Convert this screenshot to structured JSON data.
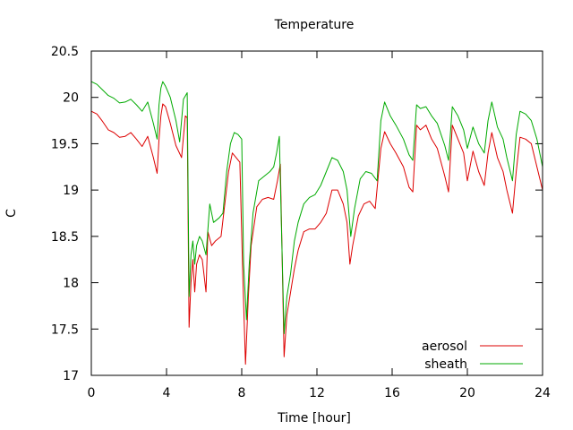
{
  "chart_data": {
    "type": "line",
    "title": "Temperature",
    "xlabel": "Time [hour]",
    "ylabel": "C",
    "xlim": [
      0,
      24
    ],
    "ylim": [
      17,
      20.5
    ],
    "xticks": [
      0,
      4,
      8,
      12,
      16,
      20,
      24
    ],
    "yticks": [
      17,
      17.5,
      18,
      18.5,
      19,
      19.5,
      20,
      20.5
    ],
    "xtick_labels": [
      "0",
      "4",
      "8",
      "12",
      "16",
      "20",
      "24"
    ],
    "ytick_labels": [
      "17",
      "17.5",
      "18",
      "18.5",
      "19",
      "19.5",
      "20",
      "20.5"
    ],
    "grid": false,
    "legend_position": "bottom-right",
    "series": [
      {
        "name": "aerosol",
        "color": "#dd0000",
        "points": [
          [
            0.0,
            19.85
          ],
          [
            0.3,
            19.82
          ],
          [
            0.6,
            19.74
          ],
          [
            0.9,
            19.65
          ],
          [
            1.2,
            19.62
          ],
          [
            1.5,
            19.57
          ],
          [
            1.8,
            19.58
          ],
          [
            2.1,
            19.62
          ],
          [
            2.4,
            19.55
          ],
          [
            2.7,
            19.47
          ],
          [
            3.0,
            19.58
          ],
          [
            3.3,
            19.35
          ],
          [
            3.5,
            19.18
          ],
          [
            3.6,
            19.55
          ],
          [
            3.7,
            19.8
          ],
          [
            3.8,
            19.93
          ],
          [
            3.95,
            19.9
          ],
          [
            4.2,
            19.72
          ],
          [
            4.5,
            19.48
          ],
          [
            4.8,
            19.35
          ],
          [
            5.0,
            19.8
          ],
          [
            5.1,
            19.78
          ],
          [
            5.2,
            17.52
          ],
          [
            5.3,
            18.0
          ],
          [
            5.4,
            18.25
          ],
          [
            5.5,
            17.9
          ],
          [
            5.6,
            18.2
          ],
          [
            5.75,
            18.3
          ],
          [
            5.9,
            18.25
          ],
          [
            6.1,
            17.9
          ],
          [
            6.2,
            18.55
          ],
          [
            6.4,
            18.4
          ],
          [
            6.6,
            18.45
          ],
          [
            6.9,
            18.5
          ],
          [
            7.1,
            18.85
          ],
          [
            7.3,
            19.2
          ],
          [
            7.5,
            19.4
          ],
          [
            7.7,
            19.35
          ],
          [
            7.9,
            19.3
          ],
          [
            8.05,
            18.1
          ],
          [
            8.2,
            17.12
          ],
          [
            8.35,
            17.85
          ],
          [
            8.5,
            18.4
          ],
          [
            8.8,
            18.82
          ],
          [
            9.1,
            18.9
          ],
          [
            9.4,
            18.92
          ],
          [
            9.7,
            18.9
          ],
          [
            9.9,
            19.1
          ],
          [
            10.05,
            19.28
          ],
          [
            10.15,
            18.3
          ],
          [
            10.25,
            17.2
          ],
          [
            10.4,
            17.65
          ],
          [
            10.6,
            17.9
          ],
          [
            10.8,
            18.15
          ],
          [
            11.0,
            18.35
          ],
          [
            11.3,
            18.55
          ],
          [
            11.6,
            18.58
          ],
          [
            11.9,
            18.58
          ],
          [
            12.2,
            18.65
          ],
          [
            12.5,
            18.75
          ],
          [
            12.8,
            19.0
          ],
          [
            13.1,
            19.0
          ],
          [
            13.4,
            18.85
          ],
          [
            13.6,
            18.65
          ],
          [
            13.75,
            18.2
          ],
          [
            13.9,
            18.4
          ],
          [
            14.2,
            18.72
          ],
          [
            14.5,
            18.85
          ],
          [
            14.8,
            18.88
          ],
          [
            15.1,
            18.8
          ],
          [
            15.4,
            19.45
          ],
          [
            15.6,
            19.63
          ],
          [
            15.9,
            19.5
          ],
          [
            16.2,
            19.4
          ],
          [
            16.6,
            19.25
          ],
          [
            16.9,
            19.03
          ],
          [
            17.1,
            18.98
          ],
          [
            17.3,
            19.7
          ],
          [
            17.5,
            19.65
          ],
          [
            17.8,
            19.7
          ],
          [
            18.1,
            19.55
          ],
          [
            18.4,
            19.45
          ],
          [
            18.8,
            19.15
          ],
          [
            19.0,
            18.98
          ],
          [
            19.2,
            19.7
          ],
          [
            19.5,
            19.55
          ],
          [
            19.8,
            19.4
          ],
          [
            20.0,
            19.1
          ],
          [
            20.3,
            19.42
          ],
          [
            20.6,
            19.2
          ],
          [
            20.9,
            19.05
          ],
          [
            21.1,
            19.4
          ],
          [
            21.3,
            19.62
          ],
          [
            21.6,
            19.35
          ],
          [
            21.9,
            19.2
          ],
          [
            22.1,
            19.0
          ],
          [
            22.4,
            18.75
          ],
          [
            22.6,
            19.2
          ],
          [
            22.8,
            19.57
          ],
          [
            23.1,
            19.55
          ],
          [
            23.4,
            19.5
          ],
          [
            23.7,
            19.25
          ],
          [
            24.0,
            19.0
          ]
        ]
      },
      {
        "name": "sheath",
        "color": "#00aa00",
        "points": [
          [
            0.0,
            20.17
          ],
          [
            0.3,
            20.14
          ],
          [
            0.6,
            20.08
          ],
          [
            0.9,
            20.02
          ],
          [
            1.2,
            19.99
          ],
          [
            1.5,
            19.94
          ],
          [
            1.8,
            19.95
          ],
          [
            2.1,
            19.98
          ],
          [
            2.4,
            19.92
          ],
          [
            2.7,
            19.85
          ],
          [
            3.0,
            19.95
          ],
          [
            3.3,
            19.72
          ],
          [
            3.5,
            19.55
          ],
          [
            3.6,
            19.92
          ],
          [
            3.7,
            20.1
          ],
          [
            3.8,
            20.17
          ],
          [
            3.95,
            20.12
          ],
          [
            4.2,
            20.0
          ],
          [
            4.5,
            19.75
          ],
          [
            4.7,
            19.52
          ],
          [
            4.9,
            19.98
          ],
          [
            5.1,
            20.05
          ],
          [
            5.2,
            17.85
          ],
          [
            5.3,
            18.3
          ],
          [
            5.4,
            18.45
          ],
          [
            5.5,
            18.2
          ],
          [
            5.6,
            18.4
          ],
          [
            5.75,
            18.5
          ],
          [
            5.9,
            18.45
          ],
          [
            6.1,
            18.3
          ],
          [
            6.3,
            18.85
          ],
          [
            6.5,
            18.65
          ],
          [
            6.8,
            18.7
          ],
          [
            7.0,
            18.75
          ],
          [
            7.2,
            19.2
          ],
          [
            7.4,
            19.5
          ],
          [
            7.6,
            19.62
          ],
          [
            7.8,
            19.6
          ],
          [
            8.0,
            19.55
          ],
          [
            8.1,
            18.2
          ],
          [
            8.25,
            17.6
          ],
          [
            8.4,
            18.2
          ],
          [
            8.6,
            18.75
          ],
          [
            8.9,
            19.1
          ],
          [
            9.2,
            19.15
          ],
          [
            9.5,
            19.2
          ],
          [
            9.7,
            19.25
          ],
          [
            9.85,
            19.4
          ],
          [
            10.0,
            19.58
          ],
          [
            10.1,
            18.7
          ],
          [
            10.25,
            17.45
          ],
          [
            10.4,
            17.85
          ],
          [
            10.6,
            18.1
          ],
          [
            10.8,
            18.45
          ],
          [
            11.0,
            18.65
          ],
          [
            11.3,
            18.85
          ],
          [
            11.6,
            18.92
          ],
          [
            11.9,
            18.95
          ],
          [
            12.2,
            19.05
          ],
          [
            12.5,
            19.2
          ],
          [
            12.8,
            19.35
          ],
          [
            13.1,
            19.32
          ],
          [
            13.4,
            19.2
          ],
          [
            13.6,
            19.0
          ],
          [
            13.8,
            18.5
          ],
          [
            14.0,
            18.8
          ],
          [
            14.3,
            19.12
          ],
          [
            14.6,
            19.2
          ],
          [
            14.9,
            19.18
          ],
          [
            15.2,
            19.1
          ],
          [
            15.4,
            19.75
          ],
          [
            15.6,
            19.95
          ],
          [
            15.9,
            19.8
          ],
          [
            16.2,
            19.7
          ],
          [
            16.6,
            19.55
          ],
          [
            16.9,
            19.38
          ],
          [
            17.1,
            19.32
          ],
          [
            17.3,
            19.92
          ],
          [
            17.5,
            19.88
          ],
          [
            17.8,
            19.9
          ],
          [
            18.1,
            19.8
          ],
          [
            18.4,
            19.72
          ],
          [
            18.8,
            19.48
          ],
          [
            19.0,
            19.32
          ],
          [
            19.2,
            19.9
          ],
          [
            19.5,
            19.8
          ],
          [
            19.8,
            19.65
          ],
          [
            20.0,
            19.45
          ],
          [
            20.3,
            19.68
          ],
          [
            20.6,
            19.5
          ],
          [
            20.9,
            19.4
          ],
          [
            21.1,
            19.75
          ],
          [
            21.3,
            19.95
          ],
          [
            21.6,
            19.68
          ],
          [
            21.9,
            19.55
          ],
          [
            22.1,
            19.35
          ],
          [
            22.4,
            19.1
          ],
          [
            22.6,
            19.6
          ],
          [
            22.8,
            19.85
          ],
          [
            23.1,
            19.82
          ],
          [
            23.4,
            19.75
          ],
          [
            23.7,
            19.55
          ],
          [
            24.0,
            19.25
          ]
        ]
      }
    ]
  }
}
